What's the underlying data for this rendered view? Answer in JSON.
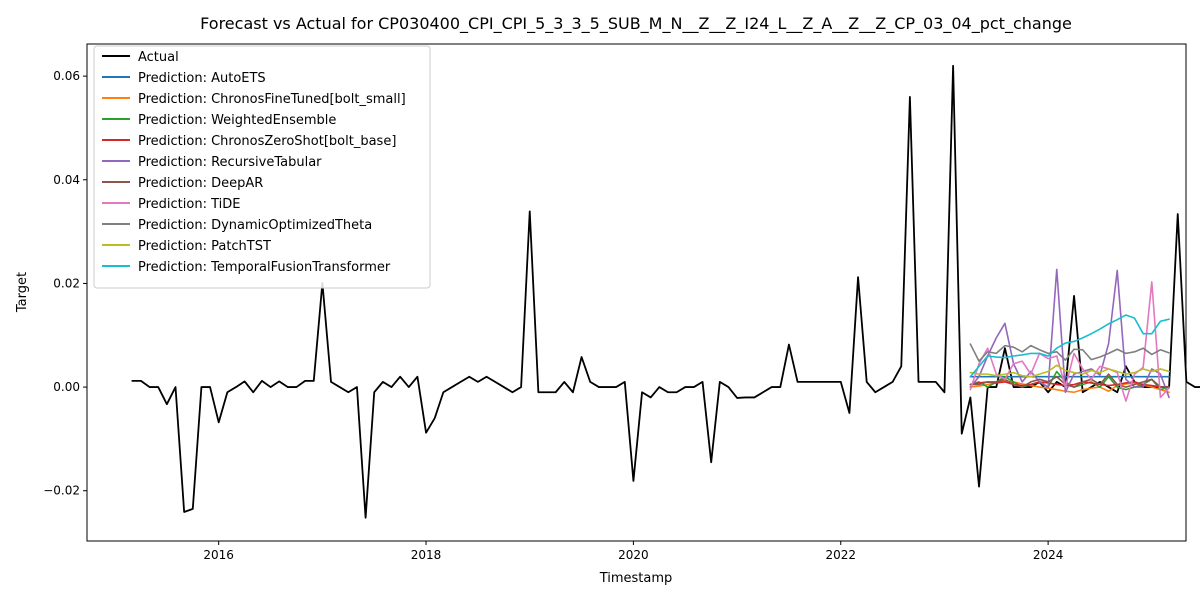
{
  "chart_data": {
    "type": "line",
    "title": "Forecast vs Actual for CP030400_CPI_CPI_5_3_3_5_SUB_M_N__Z__Z_I24_L__Z_A__Z__Z_CP_03_04_pct_change",
    "xlabel": "Timestamp",
    "ylabel": "Target",
    "xlim": [
      2014.73,
      2025.33
    ],
    "ylim": [
      -0.0297,
      0.0662
    ],
    "x_ticks": [
      2016,
      2018,
      2020,
      2022,
      2024
    ],
    "y_ticks": [
      -0.02,
      0.0,
      0.02,
      0.04,
      0.06
    ],
    "x_tick_labels": [
      "2016",
      "2018",
      "2020",
      "2022",
      "2024"
    ],
    "y_tick_labels": [
      "−0.02",
      "0.00",
      "0.02",
      "0.04",
      "0.06"
    ],
    "legend_position": "upper-left",
    "grid": false,
    "actual": {
      "name": "Actual",
      "color": "#000000",
      "start": 2015.167,
      "step": 0.0833333,
      "values": [
        0.0012,
        0.0012,
        0.0,
        0.0,
        -0.0033,
        0.0,
        -0.0241,
        -0.0235,
        0.0,
        0.0,
        -0.0068,
        -0.001,
        0.0,
        0.0011,
        -0.001,
        0.0012,
        0.0,
        0.0011,
        0.0,
        0.0,
        0.0012,
        0.0012,
        0.0201,
        0.001,
        0.0,
        -0.001,
        0.0,
        -0.0252,
        -0.001,
        0.001,
        0.0,
        0.002,
        0.0,
        0.002,
        -0.0088,
        -0.006,
        -0.001,
        0.0,
        0.001,
        0.002,
        0.001,
        0.002,
        0.001,
        0.0,
        -0.001,
        0.0,
        0.0339,
        -0.001,
        -0.001,
        -0.001,
        0.001,
        -0.001,
        0.0058,
        0.001,
        0.0,
        0.0,
        0.0,
        0.001,
        -0.0181,
        -0.001,
        -0.002,
        0.0,
        -0.001,
        -0.001,
        0.0,
        0.0,
        0.001,
        -0.0145,
        0.001,
        0.0,
        -0.0021,
        -0.002,
        -0.002,
        -0.001,
        0.0,
        0.0,
        0.0082,
        0.001,
        0.001,
        0.001,
        0.001,
        0.001,
        0.001,
        -0.005,
        0.0212,
        0.001,
        -0.001,
        0.0,
        0.001,
        0.004,
        0.056,
        0.001,
        0.001,
        0.001,
        -0.001,
        0.062,
        -0.009,
        -0.002,
        -0.0192,
        0.0,
        0.0,
        0.0075,
        0.0,
        0.0,
        0.0,
        0.001,
        -0.001,
        0.001,
        0.0,
        0.0176,
        -0.001,
        0.0,
        0.001,
        0.0,
        -0.001,
        0.004,
        0.001,
        0.0,
        0.0,
        0.0,
        0.0,
        0.0334,
        0.001,
        0.0,
        0.0
      ]
    },
    "predictions": {
      "start": 2023.25,
      "step": 0.0833333,
      "series": [
        {
          "name": "Prediction: AutoETS",
          "color": "#1f77b4",
          "values": [
            0.002,
            0.002,
            0.002,
            0.002,
            0.002,
            0.002,
            0.002,
            0.002,
            0.002,
            0.002,
            0.002,
            0.002,
            0.002,
            0.002,
            0.002,
            0.002,
            0.002,
            0.002,
            0.002,
            0.002,
            0.002,
            0.002,
            0.002,
            0.002
          ]
        },
        {
          "name": "Prediction: ChronosFineTuned[bolt_small]",
          "color": "#ff7f0e",
          "values": [
            0.0,
            0.0002,
            0.0005,
            0.0008,
            0.0012,
            0.001,
            0.0006,
            0.0003,
            0.0,
            -0.0002,
            -0.0005,
            -0.0008,
            -0.001,
            -0.0005,
            -0.0002,
            0.0,
            -0.0008,
            0.0003,
            0.0006,
            0.0008,
            0.0004,
            0.0,
            -0.0005,
            -0.001
          ]
        },
        {
          "name": "Prediction: WeightedEnsemble",
          "color": "#2ca02c",
          "values": [
            0.0005,
            0.001,
            0.0,
            0.001,
            0.002,
            0.001,
            0.0,
            0.0005,
            0.001,
            0.0,
            0.003,
            0.001,
            0.0,
            0.0005,
            0.001,
            0.0,
            0.002,
            0.0,
            -0.0005,
            0.0,
            0.0005,
            0.0015,
            -0.0005,
            0.0
          ]
        },
        {
          "name": "Prediction: ChronosZeroShot[bolt_base]",
          "color": "#d62728",
          "values": [
            0.0005,
            0.0008,
            0.001,
            0.0008,
            0.001,
            0.0005,
            0.0003,
            0.0005,
            0.001,
            0.0008,
            0.0005,
            0.0003,
            0.0005,
            0.001,
            0.0008,
            0.0005,
            0.0003,
            0.0005,
            0.0008,
            0.001,
            0.0005,
            0.0003,
            0.0,
            0.0
          ]
        },
        {
          "name": "Prediction: RecursiveTabular",
          "color": "#9467bd",
          "values": [
            0.0,
            0.002,
            0.006,
            0.0095,
            0.0123,
            0.0045,
            0.001,
            0.003,
            0.001,
            0.0,
            0.0227,
            -0.001,
            0.0025,
            0.003,
            0.0035,
            0.0023,
            0.0084,
            0.0225,
            0.0015,
            0.0,
            0.0,
            0.0035,
            0.0025,
            -0.002
          ]
        },
        {
          "name": "Prediction: DeepAR",
          "color": "#8c564b",
          "values": [
            0.0005,
            0.0005,
            0.001,
            0.001,
            0.0015,
            0.0005,
            0.0,
            0.001,
            0.0015,
            0.001,
            0.002,
            0.0005,
            0.0,
            0.001,
            0.0015,
            0.0005,
            0.0025,
            0.0005,
            0.0,
            0.0005,
            0.001,
            0.0015,
            0.0,
            0.0
          ]
        },
        {
          "name": "Prediction: TiDE",
          "color": "#e377c2",
          "values": [
            -0.0005,
            0.0045,
            0.0075,
            0.0025,
            0.0015,
            0.0045,
            0.005,
            0.0025,
            0.0065,
            0.0055,
            0.006,
            0.0,
            0.0065,
            0.0035,
            0.0015,
            0.004,
            0.0035,
            0.0028,
            -0.0027,
            0.0025,
            0.0038,
            0.0203,
            -0.002,
            -0.0002
          ]
        },
        {
          "name": "Prediction: DynamicOptimizedTheta",
          "color": "#7f7f7f",
          "values": [
            0.0083,
            0.005,
            0.0068,
            0.0065,
            0.008,
            0.0077,
            0.0068,
            0.008,
            0.0072,
            0.0065,
            0.0068,
            0.0052,
            0.0073,
            0.0072,
            0.0053,
            0.0058,
            0.0065,
            0.0073,
            0.0065,
            0.0068,
            0.0075,
            0.0063,
            0.0072,
            0.0066
          ]
        },
        {
          "name": "Prediction: PatchTST",
          "color": "#bcbd22",
          "values": [
            0.0028,
            0.0025,
            0.0025,
            0.0022,
            0.0025,
            0.0028,
            0.0022,
            0.002,
            0.0025,
            0.003,
            0.0042,
            0.0032,
            0.0028,
            0.0025,
            0.0032,
            0.0028,
            0.0035,
            0.003,
            0.0025,
            0.0028,
            0.0035,
            0.003,
            0.0035,
            0.003
          ]
        },
        {
          "name": "Prediction: TemporalFusionTransformer",
          "color": "#17becf",
          "values": [
            0.002,
            0.004,
            0.006,
            0.0058,
            0.0057,
            0.006,
            0.0062,
            0.0065,
            0.0065,
            0.006,
            0.0075,
            0.0085,
            0.0088,
            0.0095,
            0.0103,
            0.0112,
            0.0122,
            0.013,
            0.0139,
            0.0133,
            0.0103,
            0.0103,
            0.0127,
            0.0131
          ]
        }
      ]
    }
  }
}
